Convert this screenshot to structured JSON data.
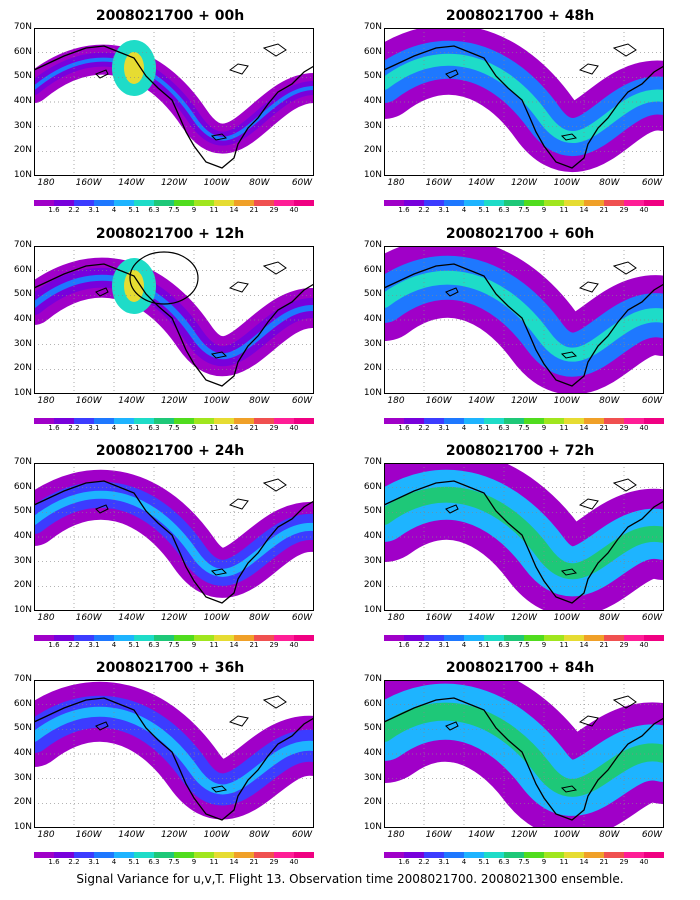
{
  "caption": "Signal Variance for u,v,T. Flight 13. Observation time 2008021700. 2008021300 ensemble.",
  "latitude_labels": [
    "70N",
    "60N",
    "50N",
    "40N",
    "30N",
    "20N",
    "10N"
  ],
  "longitude_labels": [
    "180",
    "160W",
    "140W",
    "120W",
    "100W",
    "80W",
    "60W"
  ],
  "colorbar": {
    "labels": [
      "1.6",
      "2.2",
      "3.1",
      "4",
      "5.1",
      "6.3",
      "7.5",
      "9",
      "11",
      "14",
      "21",
      "29",
      "40"
    ],
    "colors": [
      "#a000c8",
      "#7800dc",
      "#3c3cff",
      "#1e78ff",
      "#1eb4ff",
      "#1edcc8",
      "#1ec878",
      "#50dc1e",
      "#a0e61e",
      "#e6dc32",
      "#f0a028",
      "#f05050",
      "#ff1e96",
      "#f00082"
    ]
  },
  "panels": [
    {
      "title": "2008021700 + 00h",
      "level": 0
    },
    {
      "title": "2008021700 + 48h",
      "level": 4
    },
    {
      "title": "2008021700 + 12h",
      "level": 1
    },
    {
      "title": "2008021700 + 60h",
      "level": 5
    },
    {
      "title": "2008021700 + 24h",
      "level": 2
    },
    {
      "title": "2008021700 + 72h",
      "level": 6
    },
    {
      "title": "2008021700 + 36h",
      "level": 3
    },
    {
      "title": "2008021700 + 84h",
      "level": 7
    }
  ]
}
